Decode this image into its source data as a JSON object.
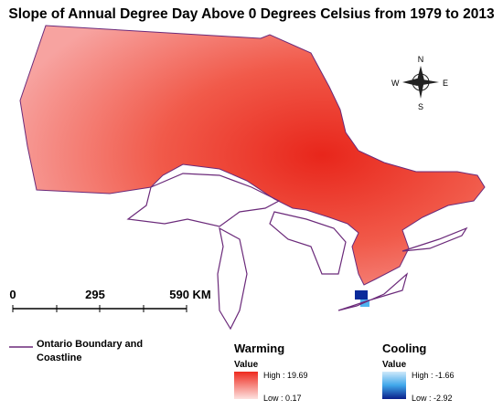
{
  "title": "Slope of Annual Degree Day Above 0 Degrees Celsius from 1979 to 2013",
  "compass": {
    "north": "N",
    "south": "S",
    "east": "E",
    "west": "W"
  },
  "scale_bar": {
    "labels": [
      "0",
      "295",
      "590 KM"
    ]
  },
  "boundary_legend": {
    "label_line1": "Ontario Boundary and",
    "label_line2": "Coastline"
  },
  "warming_legend": {
    "title": "Warming",
    "subtitle": "Value",
    "high": "High : 19.69",
    "low": "Low : 0.17"
  },
  "cooling_legend": {
    "title": "Cooling",
    "subtitle": "Value",
    "high": "High : -1.66",
    "low": "Low : -2.92"
  }
}
